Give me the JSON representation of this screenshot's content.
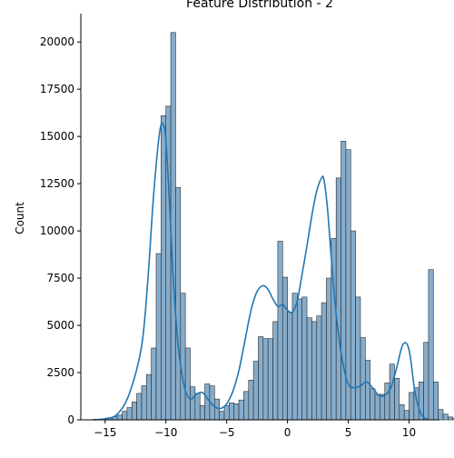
{
  "chart_data": {
    "type": "histogram",
    "title": "Feature Distribution - 2",
    "xlabel": "",
    "ylabel": "Count",
    "xlim": [
      -17,
      12.5
    ],
    "ylim": [
      0,
      21500
    ],
    "x_ticks": [
      -15,
      -10,
      -5,
      0,
      5,
      10
    ],
    "x_tick_labels": [
      "−15",
      "−10",
      "−5",
      "0",
      "5",
      "10"
    ],
    "y_ticks": [
      0,
      2500,
      5000,
      7500,
      10000,
      12500,
      15000,
      17500,
      20000
    ],
    "y_tick_labels": [
      "0",
      "2500",
      "5000",
      "7500",
      "10000",
      "12500",
      "15000",
      "17500",
      "20000"
    ],
    "bin_width": 0.4,
    "bin_start": -16.0,
    "counts": [
      20,
      30,
      60,
      100,
      160,
      250,
      450,
      650,
      950,
      1400,
      1800,
      2400,
      3800,
      8800,
      16100,
      16600,
      20500,
      12300,
      6700,
      3800,
      1750,
      1400,
      750,
      1900,
      1800,
      1100,
      450,
      750,
      900,
      850,
      1050,
      1500,
      2100,
      3100,
      4400,
      4300,
      4300,
      5200,
      9450,
      7550,
      5700,
      6700,
      6400,
      6500,
      5400,
      5200,
      5500,
      6200,
      7500,
      9600,
      12800,
      14750,
      14300,
      10000,
      6500,
      4350,
      3150,
      1650,
      1350,
      1350,
      1950,
      2950,
      2200,
      800,
      500,
      1450,
      1700,
      2000,
      4100,
      7950,
      2000,
      550,
      300,
      150,
      80
    ],
    "kde_x": [
      -16.0,
      -15.0,
      -14.0,
      -13.0,
      -12.0,
      -11.5,
      -11.0,
      -10.5,
      -10.2,
      -10.0,
      -9.7,
      -9.4,
      -9.0,
      -8.5,
      -8.0,
      -7.5,
      -7.0,
      -6.5,
      -6.0,
      -5.5,
      -5.0,
      -4.5,
      -4.0,
      -3.5,
      -3.0,
      -2.5,
      -2.0,
      -1.6,
      -1.2,
      -0.8,
      -0.4,
      0.0,
      0.4,
      0.8,
      1.2,
      1.6,
      2.0,
      2.4,
      2.8,
      3.0,
      3.3,
      3.6,
      4.0,
      4.5,
      5.0,
      5.5,
      6.0,
      6.5,
      7.0,
      7.5,
      8.0,
      8.5,
      9.0,
      9.5,
      10.0,
      10.5,
      11.0,
      11.5
    ],
    "kde_y": [
      0,
      60,
      300,
      1400,
      3900,
      7300,
      12000,
      15300,
      15600,
      14800,
      11400,
      7500,
      4000,
      1800,
      1100,
      1350,
      1450,
      1050,
      700,
      600,
      850,
      1500,
      2600,
      4200,
      5800,
      6800,
      7100,
      6900,
      6400,
      6000,
      6100,
      5800,
      5700,
      6300,
      7700,
      9200,
      10800,
      12100,
      12800,
      12700,
      11100,
      8600,
      5600,
      3200,
      1900,
      1700,
      1800,
      2000,
      1700,
      1300,
      1300,
      1700,
      2800,
      4000,
      3700,
      1400,
      300,
      30
    ],
    "bar_color": "#7fa8c8",
    "bar_edge_color": "#2b2b2b",
    "kde_color": "#1f77b4"
  }
}
